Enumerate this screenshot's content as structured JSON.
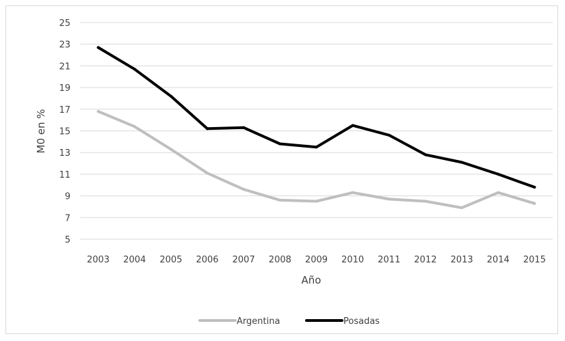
{
  "chart_data": {
    "type": "line",
    "title": "",
    "xlabel": "Año",
    "ylabel": "M0 en %",
    "ylim": [
      5,
      25
    ],
    "yticks": [
      5,
      7,
      9,
      11,
      13,
      15,
      17,
      19,
      21,
      23,
      25
    ],
    "grid": true,
    "legend_position": "bottom",
    "categories": [
      "2003",
      "2004",
      "2005",
      "2006",
      "2007",
      "2008",
      "2009",
      "2010",
      "2011",
      "2012",
      "2013",
      "2014",
      "2015"
    ],
    "series": [
      {
        "name": "Argentina",
        "color": "#bfbfbf",
        "values": [
          16.8,
          15.4,
          13.3,
          11.1,
          9.6,
          8.6,
          8.5,
          9.3,
          8.7,
          8.5,
          7.9,
          9.3,
          8.3
        ]
      },
      {
        "name": "Posadas",
        "color": "#000000",
        "values": [
          22.7,
          20.7,
          18.2,
          15.2,
          15.3,
          13.8,
          13.5,
          15.5,
          14.6,
          12.8,
          12.1,
          11.0,
          9.8
        ]
      }
    ]
  }
}
